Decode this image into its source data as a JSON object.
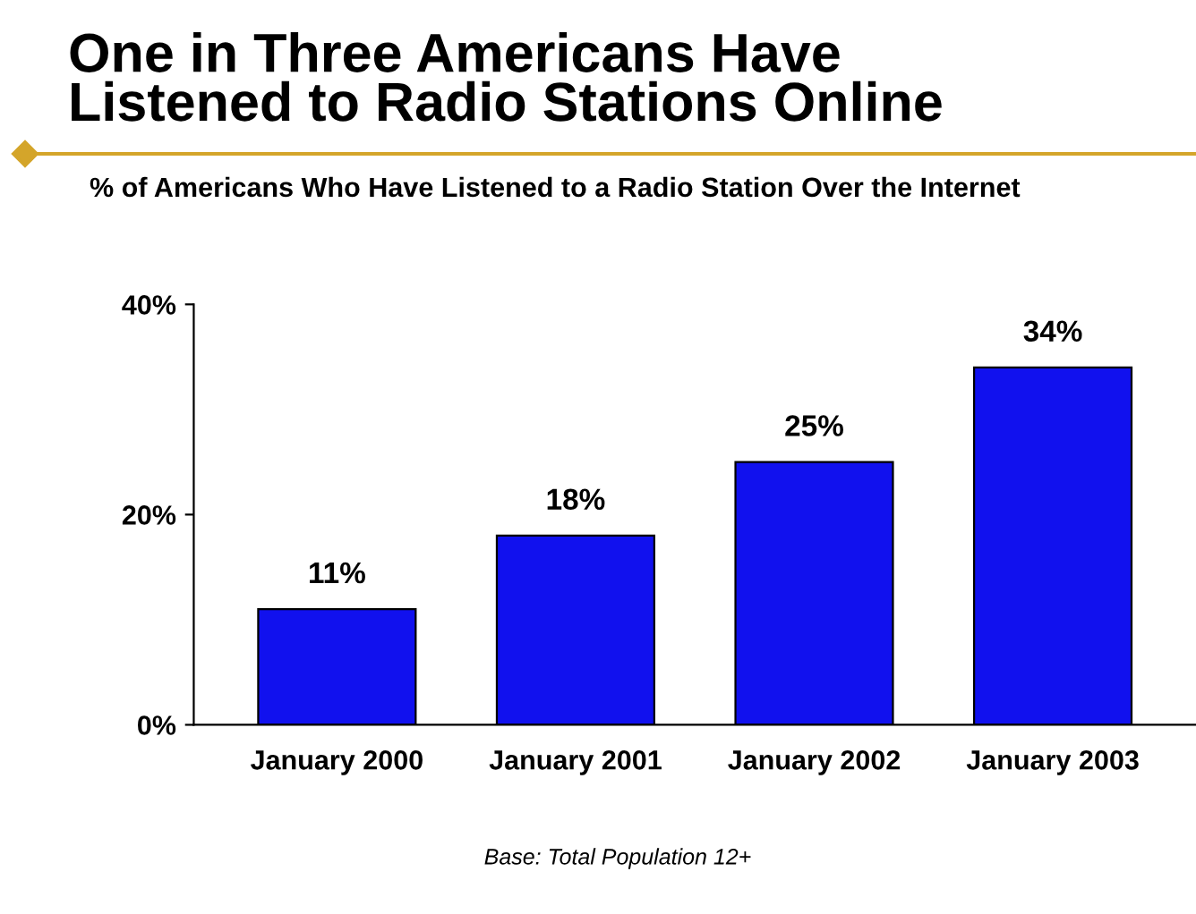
{
  "chart_data": {
    "type": "bar",
    "title": "One in Three Americans Have\nListened to Radio Stations Online",
    "subtitle": "% of Americans Who Have Listened to a Radio Station Over the Internet",
    "categories": [
      "January 2000",
      "January 2001",
      "January 2002",
      "January 2003"
    ],
    "values": [
      11,
      18,
      25,
      34
    ],
    "color": "#1111ee",
    "value_labels": [
      "11%",
      "18%",
      "25%",
      "34%"
    ],
    "ylim": [
      0,
      40
    ],
    "yticks": [
      {
        "value": 0,
        "label": "0%"
      },
      {
        "value": 20,
        "label": "20%"
      },
      {
        "value": 40,
        "label": "40%"
      }
    ],
    "grid": false,
    "legend": false,
    "annotations": [
      "Base: Total Population 12+"
    ]
  }
}
